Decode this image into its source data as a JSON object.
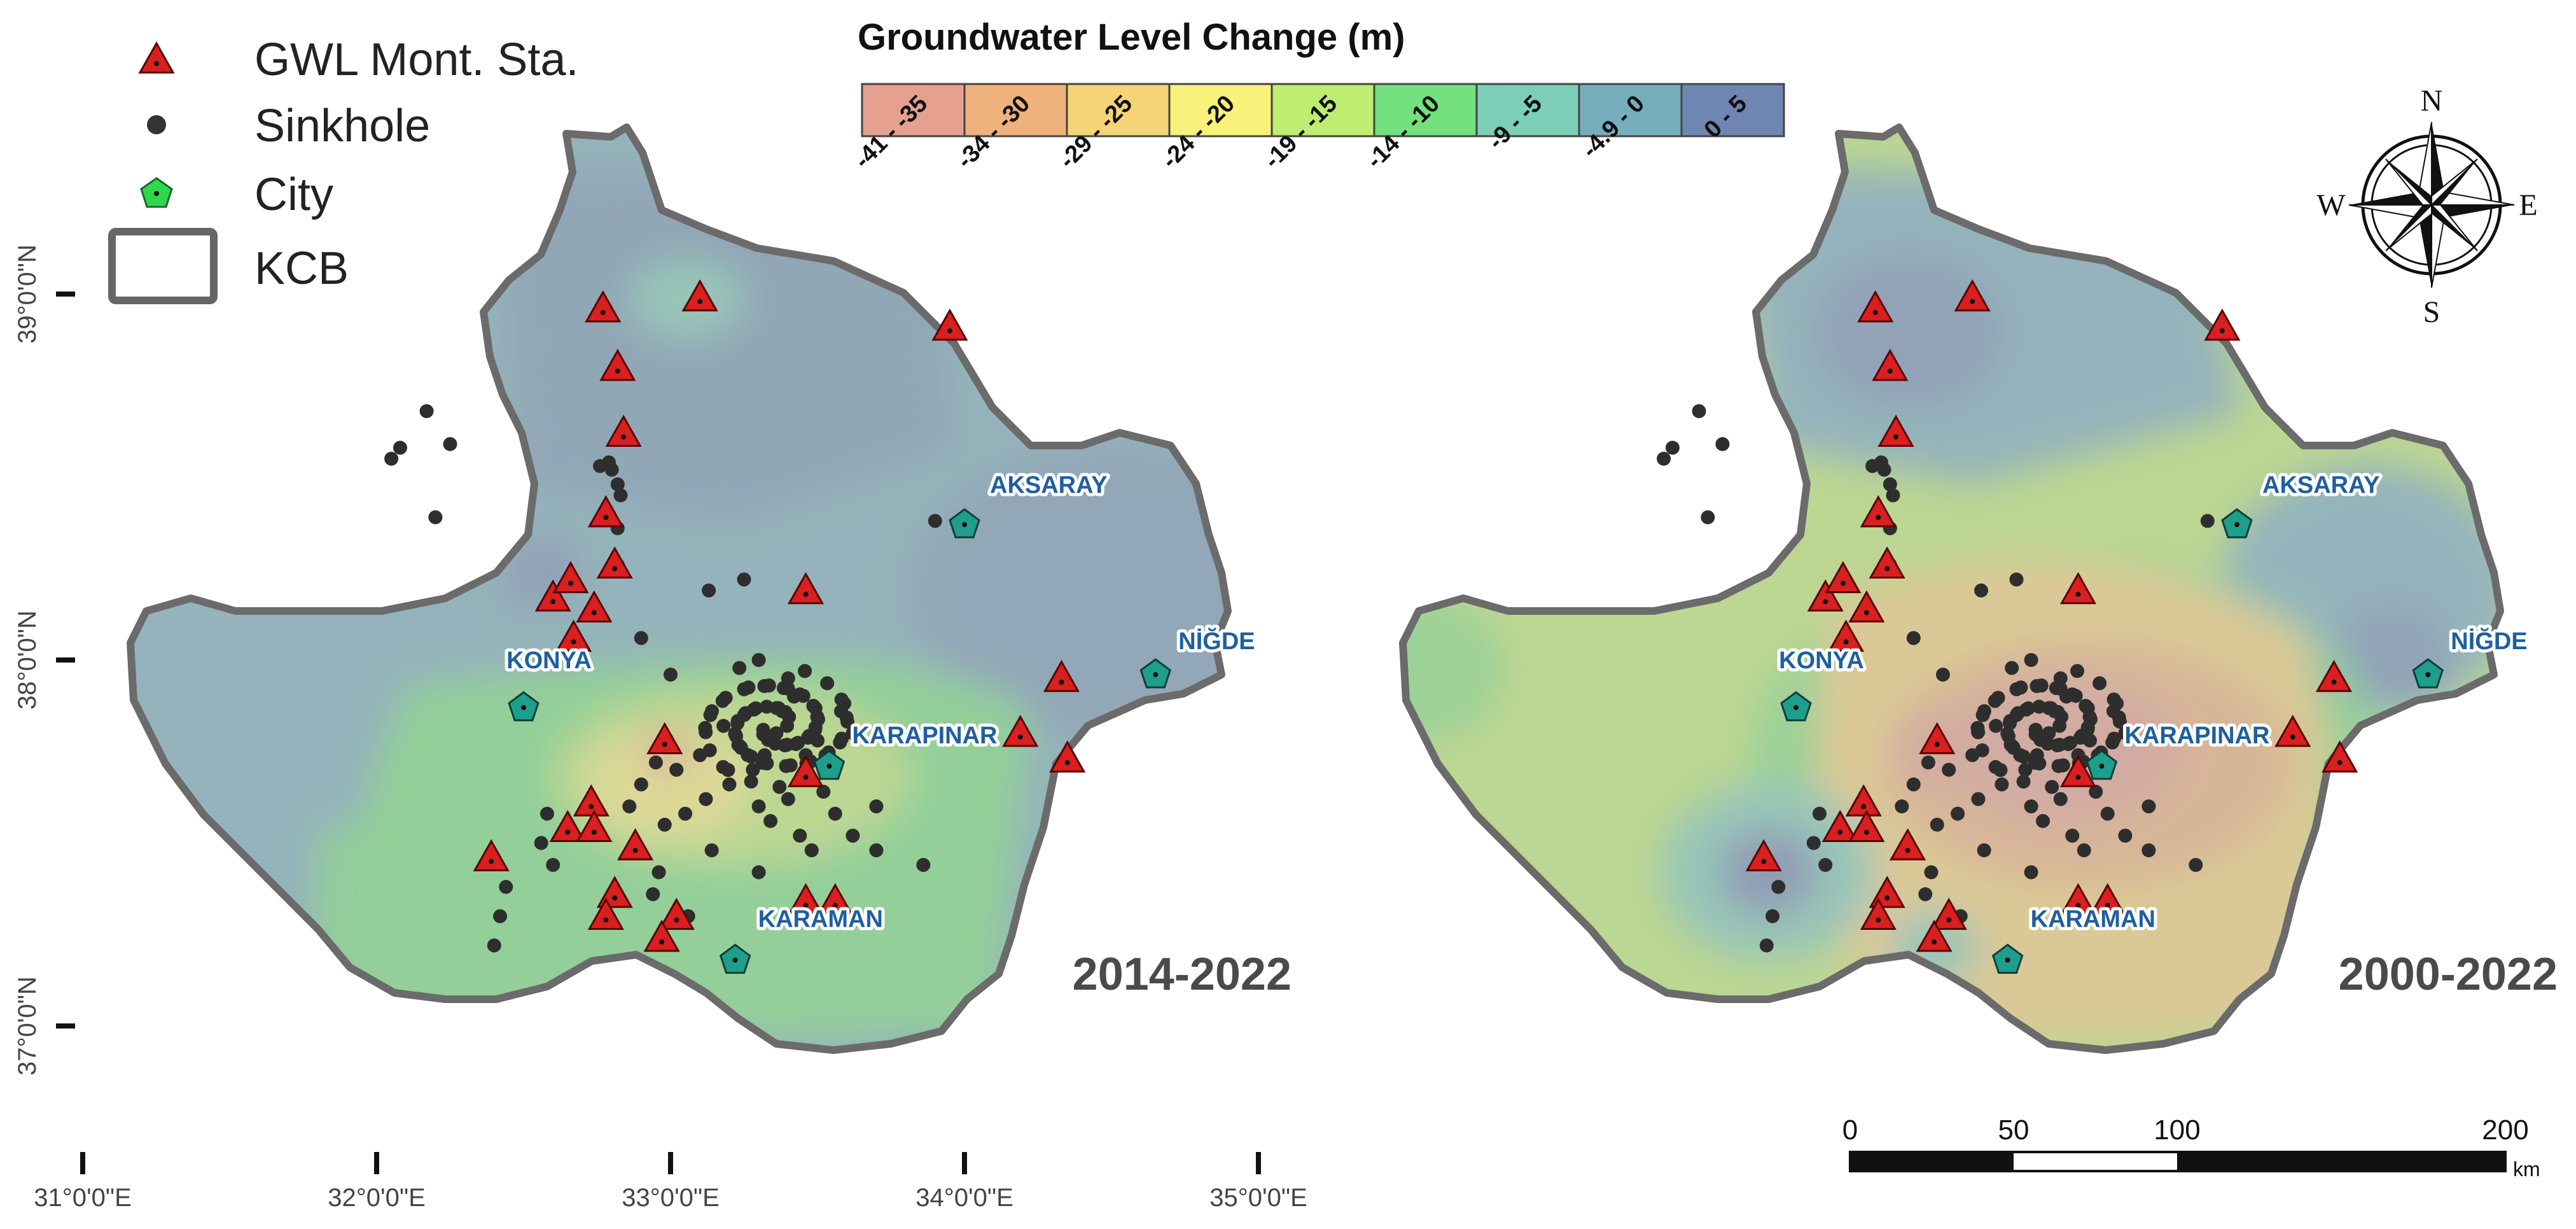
{
  "legend": {
    "items": [
      {
        "label": "GWL Mont. Sta.",
        "symbol": "triangle-icon",
        "color": "#d91f1f"
      },
      {
        "label": "Sinkhole",
        "symbol": "dot-icon",
        "color": "#333333"
      },
      {
        "label": "City",
        "symbol": "pentagon-icon",
        "color": "#2fd84a"
      },
      {
        "label": "KCB",
        "symbol": "rectangle-icon",
        "color": "#666666"
      }
    ]
  },
  "colorbar": {
    "title": "Groundwater Level Change (m)",
    "classes": [
      {
        "label": "-41 - -35",
        "color": "#e6a090"
      },
      {
        "label": "-34 - -30",
        "color": "#efb27d"
      },
      {
        "label": "-29 - -25",
        "color": "#f5d478"
      },
      {
        "label": "-24 - -20",
        "color": "#f8f27a"
      },
      {
        "label": "-19 - -15",
        "color": "#bdee72"
      },
      {
        "label": "-14 - -10",
        "color": "#74e07e"
      },
      {
        "label": "-9 - -5",
        "color": "#7ccfb6"
      },
      {
        "label": "-4.9 - 0",
        "color": "#77aebd"
      },
      {
        "label": "0 - 5",
        "color": "#6f85b2"
      }
    ]
  },
  "maps": [
    {
      "period": "2014-2022"
    },
    {
      "period": "2000-2022"
    }
  ],
  "cities": [
    {
      "name": "KONYA",
      "lon": 32.5,
      "lat": 37.87
    },
    {
      "name": "AKSARAY",
      "lon": 34.0,
      "lat": 38.37
    },
    {
      "name": "NİĞDE",
      "lon": 34.65,
      "lat": 37.96
    },
    {
      "name": "KARAPINAR",
      "lon": 33.54,
      "lat": 37.71
    },
    {
      "name": "KARAMAN",
      "lon": 33.22,
      "lat": 37.18
    }
  ],
  "latitude_labels": [
    "39°0'0\"N",
    "38°0'0\"N",
    "37°0'0\"N"
  ],
  "longitude_labels": [
    "31°0'0\"E",
    "32°0'0\"E",
    "33°0'0\"E",
    "34°0'0\"E",
    "35°0'0\"E"
  ],
  "compass": {
    "north": "N",
    "south": "S",
    "east": "E",
    "west": "W"
  },
  "scale_bar": {
    "ticks": [
      "0",
      "50",
      "100",
      "200"
    ],
    "unit": "km"
  },
  "stations": [
    [
      32.77,
      38.96
    ],
    [
      33.1,
      38.99
    ],
    [
      32.82,
      38.8
    ],
    [
      32.84,
      38.62
    ],
    [
      32.78,
      38.4
    ],
    [
      32.81,
      38.26
    ],
    [
      32.6,
      38.17
    ],
    [
      32.66,
      38.22
    ],
    [
      32.74,
      38.14
    ],
    [
      32.67,
      38.06
    ],
    [
      32.98,
      37.78
    ],
    [
      32.73,
      37.61
    ],
    [
      32.65,
      37.54
    ],
    [
      32.74,
      37.54
    ],
    [
      32.88,
      37.49
    ],
    [
      32.39,
      37.46
    ],
    [
      32.81,
      37.36
    ],
    [
      32.78,
      37.3
    ],
    [
      33.02,
      37.3
    ],
    [
      32.97,
      37.24
    ],
    [
      33.46,
      38.19
    ],
    [
      33.46,
      37.69
    ],
    [
      33.46,
      37.34
    ],
    [
      33.56,
      37.34
    ],
    [
      34.19,
      37.8
    ],
    [
      34.33,
      37.95
    ],
    [
      34.35,
      37.73
    ],
    [
      33.95,
      38.91
    ]
  ],
  "sinkholes": [
    [
      32.08,
      38.58
    ],
    [
      32.05,
      38.55
    ],
    [
      32.17,
      38.68
    ],
    [
      32.25,
      38.59
    ],
    [
      32.2,
      38.39
    ],
    [
      32.76,
      38.53
    ],
    [
      32.79,
      38.54
    ],
    [
      32.8,
      38.52
    ],
    [
      32.82,
      38.48
    ],
    [
      32.83,
      38.45
    ],
    [
      32.82,
      38.36
    ],
    [
      32.82,
      38.26
    ],
    [
      33.13,
      38.19
    ],
    [
      33.25,
      38.22
    ],
    [
      32.9,
      38.06
    ],
    [
      33.3,
      38.0
    ],
    [
      33.4,
      37.95
    ],
    [
      33.38,
      37.86
    ],
    [
      33.42,
      37.9
    ],
    [
      33.36,
      37.8
    ],
    [
      33.32,
      37.74
    ],
    [
      33.28,
      37.7
    ],
    [
      33.2,
      37.66
    ],
    [
      33.12,
      37.62
    ],
    [
      33.05,
      37.58
    ],
    [
      32.98,
      37.55
    ],
    [
      33.3,
      37.6
    ],
    [
      33.34,
      37.56
    ],
    [
      33.4,
      37.62
    ],
    [
      33.46,
      37.74
    ],
    [
      33.5,
      37.78
    ],
    [
      33.52,
      37.72
    ],
    [
      33.24,
      37.76
    ],
    [
      33.18,
      37.82
    ],
    [
      33.1,
      37.74
    ],
    [
      33.02,
      37.7
    ],
    [
      32.95,
      37.72
    ],
    [
      32.9,
      37.66
    ],
    [
      32.86,
      37.6
    ],
    [
      32.58,
      37.58
    ],
    [
      32.56,
      37.5
    ],
    [
      32.6,
      37.44
    ],
    [
      33.56,
      37.58
    ],
    [
      33.62,
      37.52
    ],
    [
      33.7,
      37.48
    ],
    [
      33.86,
      37.44
    ],
    [
      32.44,
      37.38
    ],
    [
      32.42,
      37.3
    ],
    [
      32.4,
      37.22
    ],
    [
      32.96,
      37.42
    ],
    [
      32.94,
      37.36
    ],
    [
      33.06,
      37.3
    ],
    [
      33.3,
      37.42
    ],
    [
      33.14,
      37.48
    ],
    [
      33.48,
      37.48
    ],
    [
      33.44,
      37.52
    ],
    [
      33.52,
      37.64
    ],
    [
      33.58,
      37.86
    ],
    [
      33.62,
      37.8
    ],
    [
      33.0,
      37.96
    ],
    [
      33.7,
      37.6
    ],
    [
      33.9,
      38.38
    ]
  ]
}
